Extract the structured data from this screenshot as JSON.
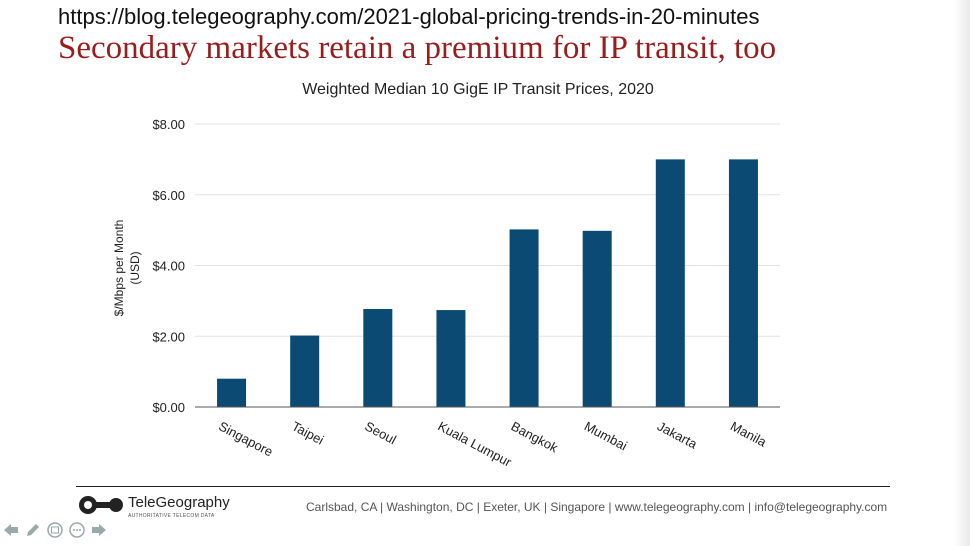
{
  "header": {
    "url": "https://blog.telegeography.com/2021-global-pricing-trends-in-20-minutes",
    "headline": "Secondary markets retain a premium for IP transit, too"
  },
  "chart_data": {
    "type": "bar",
    "title": "Weighted Median 10 GigE IP Transit Prices, 2020",
    "ylabel_line1": "$/Mbps per Month",
    "ylabel_line2": "(USD)",
    "xlabel": "",
    "categories": [
      "Singapore",
      "Taipei",
      "Seoul",
      "Kuala Lumpur",
      "Bangkok",
      "Mumbai",
      "Jakarta",
      "Manila"
    ],
    "values": [
      0.8,
      2.02,
      2.77,
      2.74,
      5.02,
      4.98,
      7.0,
      7.0
    ],
    "ylim": [
      0,
      8
    ],
    "yticks": [
      0,
      2,
      4,
      6,
      8
    ],
    "ytick_labels": [
      "$0.00",
      "$2.00",
      "$4.00",
      "$6.00",
      "$8.00"
    ],
    "grid": true,
    "bar_color": "#0b4a72"
  },
  "footer": {
    "logo_text": "TeleGeography",
    "logo_sub": "AUTHORITATIVE TELECOM DATA",
    "contact": "Carlsbad, CA | Washington, DC | Exeter, UK | Singapore | www.telegeography.com | info@telegeography.com"
  },
  "colors": {
    "headline": "#9b1c1c",
    "bar": "#0b4a72"
  }
}
